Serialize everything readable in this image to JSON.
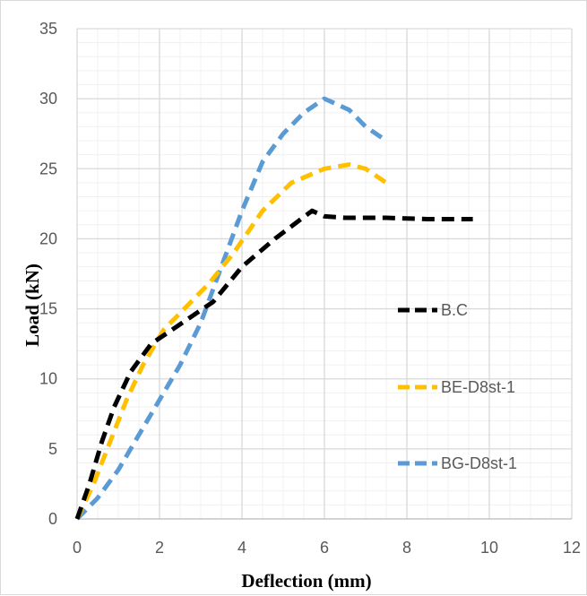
{
  "chart_data": {
    "type": "line",
    "title": "",
    "xlabel": "Deflection (mm)",
    "ylabel": "Load (kN)",
    "xlim": [
      0,
      12
    ],
    "ylim": [
      0,
      35
    ],
    "xticks": [
      0,
      2,
      4,
      6,
      8,
      10,
      12
    ],
    "yticks": [
      0,
      5,
      10,
      15,
      20,
      25,
      30,
      35
    ],
    "grid": true,
    "legend_position": "right",
    "series": [
      {
        "name": "B.C",
        "color": "#000000",
        "dash": "dashed",
        "points": [
          [
            0,
            0
          ],
          [
            0.3,
            2.5
          ],
          [
            0.6,
            5.5
          ],
          [
            0.9,
            8.0
          ],
          [
            1.3,
            10.5
          ],
          [
            1.8,
            12.5
          ],
          [
            2.3,
            13.5
          ],
          [
            2.8,
            14.5
          ],
          [
            3.3,
            15.5
          ],
          [
            4.0,
            18.0
          ],
          [
            4.8,
            20.0
          ],
          [
            5.7,
            22.0
          ],
          [
            6.0,
            21.6
          ],
          [
            6.5,
            21.5
          ],
          [
            7.5,
            21.5
          ],
          [
            8.5,
            21.4
          ],
          [
            9.6,
            21.4
          ]
        ]
      },
      {
        "name": "BE-D8st-1",
        "color": "#ffc000",
        "dash": "dashed",
        "points": [
          [
            0,
            0
          ],
          [
            0.4,
            2.5
          ],
          [
            0.8,
            5.5
          ],
          [
            1.2,
            8.5
          ],
          [
            1.6,
            11.0
          ],
          [
            2.1,
            13.5
          ],
          [
            2.6,
            15.0
          ],
          [
            3.2,
            16.8
          ],
          [
            3.8,
            19.0
          ],
          [
            4.5,
            22.0
          ],
          [
            5.2,
            24.0
          ],
          [
            6.0,
            25.0
          ],
          [
            6.6,
            25.3
          ],
          [
            7.0,
            25.0
          ],
          [
            7.5,
            24.0
          ]
        ]
      },
      {
        "name": "BG-D8st-1",
        "color": "#5b9bd5",
        "dash": "dashed",
        "points": [
          [
            0,
            0
          ],
          [
            0.5,
            1.5
          ],
          [
            1.0,
            3.5
          ],
          [
            1.5,
            6.0
          ],
          [
            2.0,
            8.5
          ],
          [
            2.5,
            11.0
          ],
          [
            3.0,
            14.0
          ],
          [
            3.5,
            18.0
          ],
          [
            4.0,
            22.0
          ],
          [
            4.5,
            25.5
          ],
          [
            5.0,
            27.5
          ],
          [
            5.5,
            29.0
          ],
          [
            6.0,
            30.0
          ],
          [
            6.6,
            29.2
          ],
          [
            7.0,
            28.0
          ],
          [
            7.5,
            27.0
          ]
        ]
      }
    ]
  }
}
